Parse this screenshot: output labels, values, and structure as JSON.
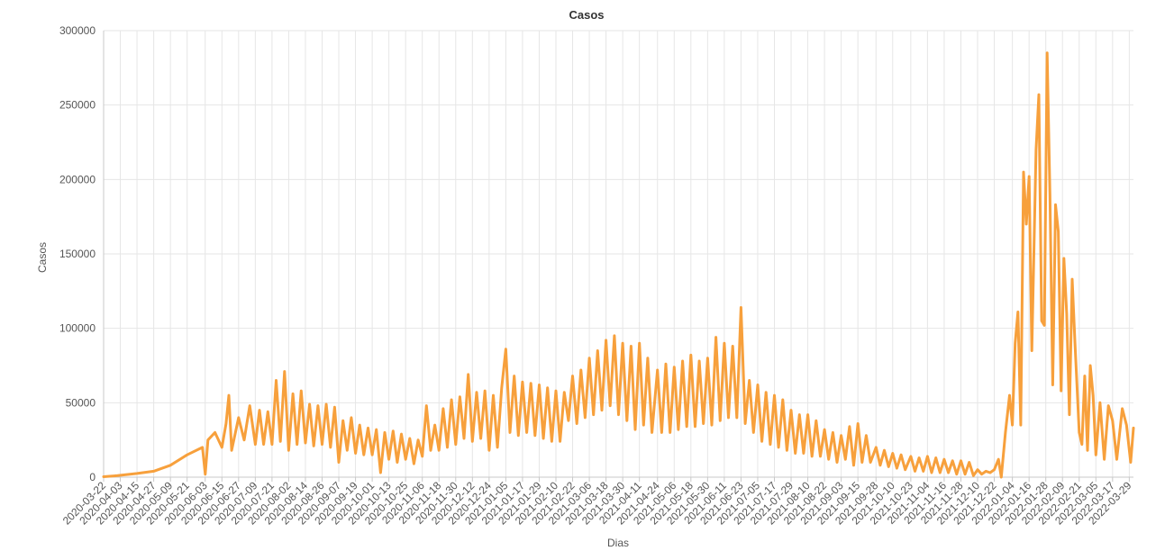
{
  "chart_data": {
    "type": "line",
    "title": "Casos",
    "xlabel": "Dias",
    "ylabel": "Casos",
    "ylim": [
      0,
      300000
    ],
    "y_ticks": [
      0,
      50000,
      100000,
      150000,
      200000,
      250000,
      300000
    ],
    "y_tick_labels": [
      "0",
      "50000",
      "100000",
      "150000",
      "200000",
      "250000",
      "300000"
    ],
    "x_start": "2020-03-22",
    "x_end": "2022-04-01",
    "x_tick_labels": [
      "2020-03-22",
      "2020-04-03",
      "2020-04-15",
      "2020-04-27",
      "2020-05-09",
      "2020-05-21",
      "2020-06-03",
      "2020-06-15",
      "2020-06-27",
      "2020-07-09",
      "2020-07-21",
      "2020-08-02",
      "2020-08-14",
      "2020-08-26",
      "2020-09-07",
      "2020-09-19",
      "2020-10-01",
      "2020-10-13",
      "2020-10-25",
      "2020-11-06",
      "2020-11-18",
      "2020-11-30",
      "2020-12-12",
      "2020-12-24",
      "2021-01-05",
      "2021-01-17",
      "2021-01-29",
      "2021-02-10",
      "2021-02-22",
      "2021-03-06",
      "2021-03-18",
      "2021-03-30",
      "2021-04-11",
      "2021-04-24",
      "2021-05-06",
      "2021-05-18",
      "2021-05-30",
      "2021-06-11",
      "2021-06-23",
      "2021-07-05",
      "2021-07-17",
      "2021-07-29",
      "2021-08-10",
      "2021-08-22",
      "2021-09-03",
      "2021-09-15",
      "2021-09-28",
      "2021-10-10",
      "2021-10-23",
      "2021-11-04",
      "2021-11-16",
      "2021-11-28",
      "2021-12-10",
      "2021-12-22",
      "2022-01-04",
      "2022-01-16",
      "2022-01-28",
      "2022-02-09",
      "2022-02-21",
      "2022-03-05",
      "2022-03-17",
      "2022-03-29"
    ],
    "grid": true,
    "legend": "none",
    "series_color": "#f7a03c",
    "series": [
      {
        "points": [
          [
            "2020-03-22",
            300
          ],
          [
            "2020-04-01",
            1000
          ],
          [
            "2020-04-15",
            2500
          ],
          [
            "2020-04-27",
            4000
          ],
          [
            "2020-05-09",
            8000
          ],
          [
            "2020-05-21",
            15000
          ],
          [
            "2020-06-01",
            20000
          ],
          [
            "2020-06-03",
            2000
          ],
          [
            "2020-06-05",
            25000
          ],
          [
            "2020-06-10",
            30000
          ],
          [
            "2020-06-15",
            20000
          ],
          [
            "2020-06-18",
            36000
          ],
          [
            "2020-06-20",
            55000
          ],
          [
            "2020-06-22",
            18000
          ],
          [
            "2020-06-27",
            40000
          ],
          [
            "2020-07-01",
            25000
          ],
          [
            "2020-07-05",
            48000
          ],
          [
            "2020-07-09",
            22000
          ],
          [
            "2020-07-12",
            45000
          ],
          [
            "2020-07-15",
            22000
          ],
          [
            "2020-07-18",
            44000
          ],
          [
            "2020-07-21",
            22000
          ],
          [
            "2020-07-24",
            65000
          ],
          [
            "2020-07-27",
            24000
          ],
          [
            "2020-07-30",
            71000
          ],
          [
            "2020-08-02",
            18000
          ],
          [
            "2020-08-05",
            56000
          ],
          [
            "2020-08-08",
            22000
          ],
          [
            "2020-08-11",
            58000
          ],
          [
            "2020-08-14",
            23000
          ],
          [
            "2020-08-17",
            49000
          ],
          [
            "2020-08-20",
            21000
          ],
          [
            "2020-08-23",
            48000
          ],
          [
            "2020-08-26",
            22000
          ],
          [
            "2020-08-29",
            49000
          ],
          [
            "2020-09-01",
            20000
          ],
          [
            "2020-09-04",
            47000
          ],
          [
            "2020-09-07",
            10000
          ],
          [
            "2020-09-10",
            38000
          ],
          [
            "2020-09-13",
            18000
          ],
          [
            "2020-09-16",
            40000
          ],
          [
            "2020-09-19",
            16000
          ],
          [
            "2020-09-22",
            35000
          ],
          [
            "2020-09-25",
            15000
          ],
          [
            "2020-09-28",
            33000
          ],
          [
            "2020-10-01",
            15000
          ],
          [
            "2020-10-04",
            32000
          ],
          [
            "2020-10-07",
            3000
          ],
          [
            "2020-10-10",
            30000
          ],
          [
            "2020-10-13",
            12000
          ],
          [
            "2020-10-16",
            31000
          ],
          [
            "2020-10-19",
            10000
          ],
          [
            "2020-10-22",
            29000
          ],
          [
            "2020-10-25",
            12000
          ],
          [
            "2020-10-28",
            26000
          ],
          [
            "2020-10-31",
            9000
          ],
          [
            "2020-11-03",
            25000
          ],
          [
            "2020-11-06",
            14000
          ],
          [
            "2020-11-09",
            48000
          ],
          [
            "2020-11-12",
            18000
          ],
          [
            "2020-11-15",
            35000
          ],
          [
            "2020-11-18",
            18000
          ],
          [
            "2020-11-21",
            46000
          ],
          [
            "2020-11-24",
            20000
          ],
          [
            "2020-11-27",
            52000
          ],
          [
            "2020-11-30",
            22000
          ],
          [
            "2020-12-03",
            54000
          ],
          [
            "2020-12-06",
            26000
          ],
          [
            "2020-12-09",
            69000
          ],
          [
            "2020-12-12",
            24000
          ],
          [
            "2020-12-15",
            57000
          ],
          [
            "2020-12-18",
            26000
          ],
          [
            "2020-12-21",
            58000
          ],
          [
            "2020-12-24",
            18000
          ],
          [
            "2020-12-27",
            55000
          ],
          [
            "2020-12-30",
            20000
          ],
          [
            "2021-01-02",
            60000
          ],
          [
            "2021-01-05",
            86000
          ],
          [
            "2021-01-08",
            30000
          ],
          [
            "2021-01-11",
            68000
          ],
          [
            "2021-01-14",
            28000
          ],
          [
            "2021-01-17",
            64000
          ],
          [
            "2021-01-20",
            30000
          ],
          [
            "2021-01-23",
            63000
          ],
          [
            "2021-01-26",
            28000
          ],
          [
            "2021-01-29",
            62000
          ],
          [
            "2021-02-01",
            26000
          ],
          [
            "2021-02-04",
            60000
          ],
          [
            "2021-02-07",
            24000
          ],
          [
            "2021-02-10",
            58000
          ],
          [
            "2021-02-13",
            24000
          ],
          [
            "2021-02-16",
            57000
          ],
          [
            "2021-02-19",
            38000
          ],
          [
            "2021-02-22",
            68000
          ],
          [
            "2021-02-25",
            36000
          ],
          [
            "2021-02-28",
            72000
          ],
          [
            "2021-03-03",
            40000
          ],
          [
            "2021-03-06",
            80000
          ],
          [
            "2021-03-09",
            42000
          ],
          [
            "2021-03-12",
            85000
          ],
          [
            "2021-03-15",
            45000
          ],
          [
            "2021-03-18",
            92000
          ],
          [
            "2021-03-21",
            48000
          ],
          [
            "2021-03-24",
            95000
          ],
          [
            "2021-03-27",
            42000
          ],
          [
            "2021-03-30",
            90000
          ],
          [
            "2021-04-02",
            38000
          ],
          [
            "2021-04-05",
            88000
          ],
          [
            "2021-04-08",
            32000
          ],
          [
            "2021-04-11",
            90000
          ],
          [
            "2021-04-14",
            35000
          ],
          [
            "2021-04-17",
            80000
          ],
          [
            "2021-04-20",
            30000
          ],
          [
            "2021-04-24",
            72000
          ],
          [
            "2021-04-27",
            30000
          ],
          [
            "2021-04-30",
            76000
          ],
          [
            "2021-05-03",
            30000
          ],
          [
            "2021-05-06",
            74000
          ],
          [
            "2021-05-09",
            32000
          ],
          [
            "2021-05-12",
            78000
          ],
          [
            "2021-05-15",
            34000
          ],
          [
            "2021-05-18",
            82000
          ],
          [
            "2021-05-21",
            34000
          ],
          [
            "2021-05-24",
            78000
          ],
          [
            "2021-05-27",
            36000
          ],
          [
            "2021-05-30",
            80000
          ],
          [
            "2021-06-02",
            35000
          ],
          [
            "2021-06-05",
            94000
          ],
          [
            "2021-06-08",
            38000
          ],
          [
            "2021-06-11",
            90000
          ],
          [
            "2021-06-14",
            40000
          ],
          [
            "2021-06-17",
            88000
          ],
          [
            "2021-06-20",
            40000
          ],
          [
            "2021-06-23",
            114000
          ],
          [
            "2021-06-26",
            36000
          ],
          [
            "2021-06-29",
            65000
          ],
          [
            "2021-07-02",
            30000
          ],
          [
            "2021-07-05",
            62000
          ],
          [
            "2021-07-08",
            24000
          ],
          [
            "2021-07-11",
            57000
          ],
          [
            "2021-07-14",
            22000
          ],
          [
            "2021-07-17",
            55000
          ],
          [
            "2021-07-20",
            20000
          ],
          [
            "2021-07-23",
            52000
          ],
          [
            "2021-07-26",
            18000
          ],
          [
            "2021-07-29",
            45000
          ],
          [
            "2021-08-01",
            16000
          ],
          [
            "2021-08-04",
            42000
          ],
          [
            "2021-08-07",
            16000
          ],
          [
            "2021-08-10",
            42000
          ],
          [
            "2021-08-13",
            14000
          ],
          [
            "2021-08-16",
            38000
          ],
          [
            "2021-08-19",
            14000
          ],
          [
            "2021-08-22",
            32000
          ],
          [
            "2021-08-25",
            12000
          ],
          [
            "2021-08-28",
            30000
          ],
          [
            "2021-08-31",
            10000
          ],
          [
            "2021-09-03",
            28000
          ],
          [
            "2021-09-06",
            12000
          ],
          [
            "2021-09-09",
            34000
          ],
          [
            "2021-09-12",
            8000
          ],
          [
            "2021-09-15",
            36000
          ],
          [
            "2021-09-18",
            10000
          ],
          [
            "2021-09-21",
            28000
          ],
          [
            "2021-09-24",
            10000
          ],
          [
            "2021-09-28",
            20000
          ],
          [
            "2021-10-01",
            8000
          ],
          [
            "2021-10-04",
            18000
          ],
          [
            "2021-10-07",
            7000
          ],
          [
            "2021-10-10",
            16000
          ],
          [
            "2021-10-13",
            6000
          ],
          [
            "2021-10-16",
            15000
          ],
          [
            "2021-10-19",
            5000
          ],
          [
            "2021-10-23",
            14000
          ],
          [
            "2021-10-26",
            4000
          ],
          [
            "2021-10-29",
            13000
          ],
          [
            "2021-11-01",
            4000
          ],
          [
            "2021-11-04",
            14000
          ],
          [
            "2021-11-07",
            3000
          ],
          [
            "2021-11-10",
            13000
          ],
          [
            "2021-11-13",
            3000
          ],
          [
            "2021-11-16",
            12000
          ],
          [
            "2021-11-19",
            3000
          ],
          [
            "2021-11-22",
            11000
          ],
          [
            "2021-11-25",
            2000
          ],
          [
            "2021-11-28",
            11000
          ],
          [
            "2021-12-01",
            2000
          ],
          [
            "2021-12-04",
            10000
          ],
          [
            "2021-12-07",
            1000
          ],
          [
            "2021-12-10",
            5000
          ],
          [
            "2021-12-13",
            2000
          ],
          [
            "2021-12-16",
            4000
          ],
          [
            "2021-12-19",
            3000
          ],
          [
            "2021-12-22",
            5000
          ],
          [
            "2021-12-25",
            12000
          ],
          [
            "2021-12-27",
            0
          ],
          [
            "2021-12-30",
            30000
          ],
          [
            "2022-01-02",
            55000
          ],
          [
            "2022-01-04",
            35000
          ],
          [
            "2022-01-06",
            90000
          ],
          [
            "2022-01-08",
            111000
          ],
          [
            "2022-01-10",
            35000
          ],
          [
            "2022-01-12",
            205000
          ],
          [
            "2022-01-14",
            170000
          ],
          [
            "2022-01-16",
            202000
          ],
          [
            "2022-01-18",
            85000
          ],
          [
            "2022-01-21",
            220000
          ],
          [
            "2022-01-23",
            257000
          ],
          [
            "2022-01-25",
            105000
          ],
          [
            "2022-01-27",
            102000
          ],
          [
            "2022-01-29",
            285000
          ],
          [
            "2022-01-31",
            190000
          ],
          [
            "2022-02-02",
            62000
          ],
          [
            "2022-02-04",
            183000
          ],
          [
            "2022-02-06",
            165000
          ],
          [
            "2022-02-08",
            58000
          ],
          [
            "2022-02-10",
            147000
          ],
          [
            "2022-02-12",
            110000
          ],
          [
            "2022-02-14",
            42000
          ],
          [
            "2022-02-16",
            133000
          ],
          [
            "2022-02-18",
            90000
          ],
          [
            "2022-02-21",
            30000
          ],
          [
            "2022-02-23",
            22000
          ],
          [
            "2022-02-25",
            68000
          ],
          [
            "2022-02-27",
            18000
          ],
          [
            "2022-03-01",
            75000
          ],
          [
            "2022-03-03",
            55000
          ],
          [
            "2022-03-05",
            15000
          ],
          [
            "2022-03-08",
            50000
          ],
          [
            "2022-03-11",
            12000
          ],
          [
            "2022-03-14",
            48000
          ],
          [
            "2022-03-17",
            38000
          ],
          [
            "2022-03-20",
            12000
          ],
          [
            "2022-03-24",
            46000
          ],
          [
            "2022-03-27",
            35000
          ],
          [
            "2022-03-30",
            10000
          ],
          [
            "2022-04-01",
            33000
          ]
        ]
      }
    ]
  }
}
